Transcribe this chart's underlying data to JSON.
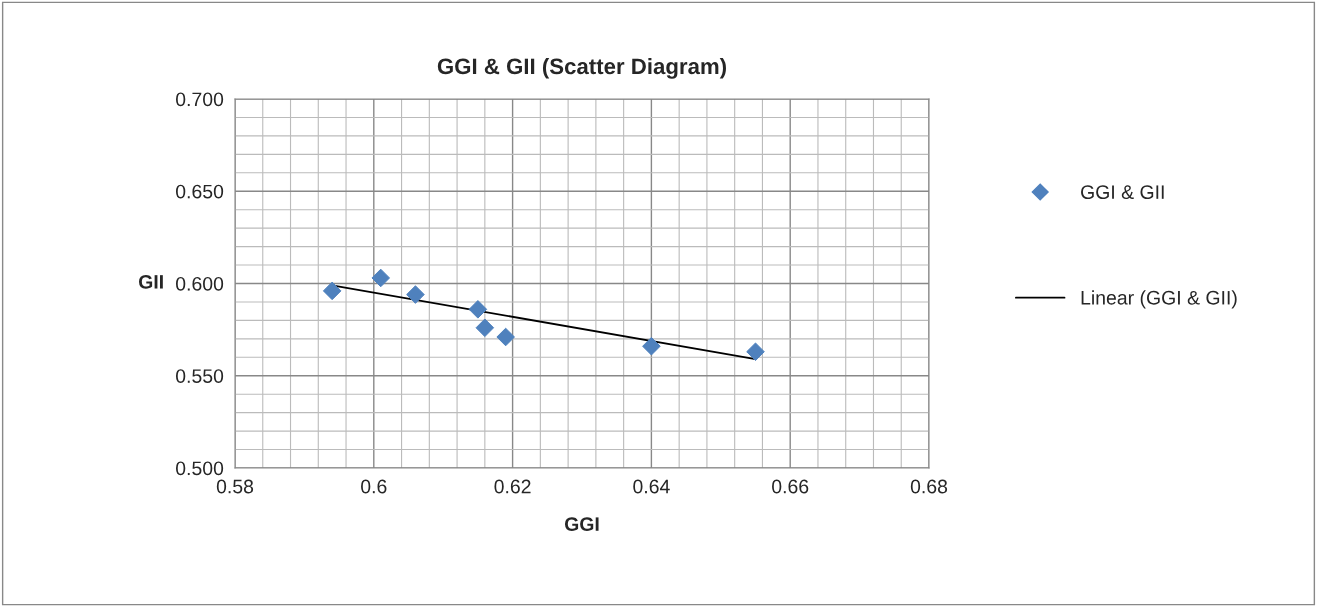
{
  "chart_data": {
    "type": "scatter",
    "title": "GGI & GII (Scatter Diagram)",
    "xlabel": "GGI",
    "ylabel": "GII",
    "series": [
      {
        "name": "GGI & GII",
        "color": "#4f81bd",
        "marker": "diamond",
        "x": [
          0.594,
          0.601,
          0.606,
          0.615,
          0.616,
          0.619,
          0.64,
          0.655
        ],
        "values": [
          0.596,
          0.603,
          0.594,
          0.586,
          0.576,
          0.571,
          0.566,
          0.563
        ]
      },
      {
        "name": "Linear (GGI & GII)",
        "type": "line",
        "color": "#000000",
        "marker": "none",
        "line_style": "solid",
        "x": [
          0.594,
          0.655
        ],
        "values": [
          0.599,
          0.559
        ]
      }
    ],
    "xlim": [
      0.58,
      0.68
    ],
    "ylim": [
      0.5,
      0.7
    ],
    "xticks": [
      0.58,
      {
        "value": 0.584,
        "label": null
      },
      {
        "value": 0.588,
        "label": null
      },
      {
        "value": 0.592,
        "label": null
      },
      {
        "value": 0.596,
        "label": null
      },
      {
        "value": 0.6,
        "label": "0.6"
      },
      {
        "value": 0.604,
        "label": null
      },
      {
        "value": 0.608,
        "label": null
      },
      {
        "value": 0.612,
        "label": null
      },
      {
        "value": 0.616,
        "label": null
      },
      0.62,
      {
        "value": 0.624,
        "label": null
      },
      {
        "value": 0.628,
        "label": null
      },
      {
        "value": 0.632,
        "label": null
      },
      {
        "value": 0.636,
        "label": null
      },
      0.64,
      {
        "value": 0.644,
        "label": null
      },
      {
        "value": 0.648,
        "label": null
      },
      {
        "value": 0.652,
        "label": null
      },
      {
        "value": 0.656,
        "label": null
      },
      0.66,
      {
        "value": 0.664,
        "label": null
      },
      {
        "value": 0.668,
        "label": null
      },
      {
        "value": 0.672,
        "label": null
      },
      {
        "value": 0.676,
        "label": null
      },
      0.68
    ],
    "yticks": [
      {
        "value": 0.5,
        "label": "0.500"
      },
      {
        "value": 0.51,
        "label": null
      },
      {
        "value": 0.52,
        "label": null
      },
      {
        "value": 0.53,
        "label": null
      },
      {
        "value": 0.54,
        "label": null
      },
      {
        "value": 0.55,
        "label": "0.550"
      },
      {
        "value": 0.56,
        "label": null
      },
      {
        "value": 0.57,
        "label": null
      },
      {
        "value": 0.58,
        "label": null
      },
      {
        "value": 0.59,
        "label": null
      },
      {
        "value": 0.6,
        "label": "0.600"
      },
      {
        "value": 0.61,
        "label": null
      },
      {
        "value": 0.62,
        "label": null
      },
      {
        "value": 0.63,
        "label": null
      },
      {
        "value": 0.64,
        "label": null
      },
      {
        "value": 0.65,
        "label": "0.650"
      },
      {
        "value": 0.66,
        "label": null
      },
      {
        "value": 0.67,
        "label": null
      },
      {
        "value": 0.68,
        "label": null
      },
      {
        "value": 0.69,
        "label": null
      },
      {
        "value": 0.7,
        "label": "0.700"
      }
    ],
    "grid": true,
    "legend": "right"
  }
}
